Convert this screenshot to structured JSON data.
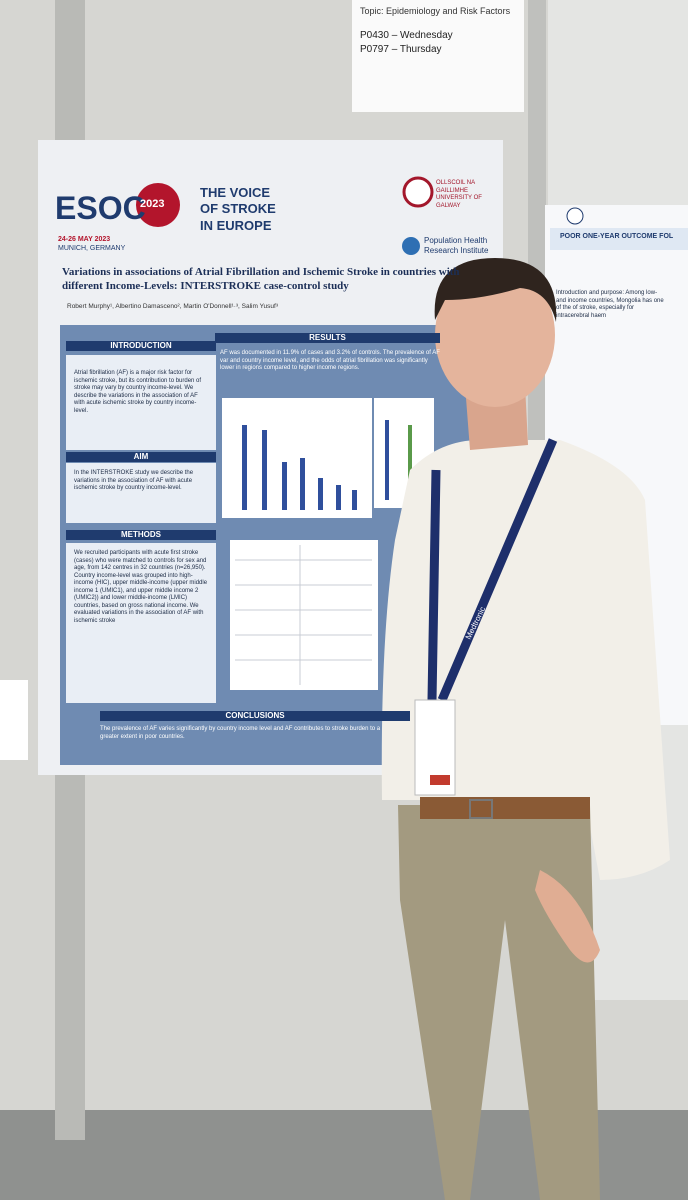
{
  "sign": {
    "topic": "Topic: Epidemiology and Risk Factors",
    "sessions": [
      "P0430 – Wednesday",
      "P0797 – Thursday"
    ]
  },
  "poster": {
    "logo": "ESOC",
    "logo_year": "2023",
    "dates": "24-26 MAY 2023",
    "place": "MUNICH, GERMANY",
    "slogan": "THE VOICE OF STROKE IN EUROPE",
    "university": "OLLSCOIL NA GAILLIMHE UNIVERSITY OF GALWAY",
    "institute": "Population Health Research Institute",
    "title": "Variations in associations of Atrial Fibrillation and Ischemic Stroke in countries with different Income-Levels: INTERSTROKE case-control study",
    "authors": "Robert Murphy¹, Albertino Damasceno², Martin O'Donnell¹·³, Salim Yusuf³",
    "sections": [
      {
        "heading": "INTRODUCTION",
        "text": "Atrial fibrillation (AF) is a major risk factor for ischemic stroke, but its contribution to burden of stroke may vary by country income-level. We describe the variations in the association of AF with acute ischemic stroke by country income-level."
      },
      {
        "heading": "AIM",
        "text": "In the INTERSTROKE study we describe the variations in the association of AF with acute ischemic stroke by country income-level."
      },
      {
        "heading": "METHODS",
        "text": "We recruited participants with acute first stroke (cases) who were matched to controls for sex and age, from 142 centres in 32 countries (n=26,950). Country income-level was grouped into high-income (HIC), upper middle-income (upper middle income 1 (UMIC1), and upper middle income 2 (UMIC2)) and lower middle-income (LMIC) countries, based on gross national income. We evaluated variations in the association of AF with ischemic stroke"
      },
      {
        "heading": "RESULTS",
        "text": "AF was documented in 11.9% of cases and 3.2% of controls. The prevalence of AF var and country income level, and the odds of atrial fibrillation was significantly lower in regions compared to higher income regions."
      },
      {
        "heading": "CONCLUSIONS",
        "text": "The prevalence of AF varies significantly by country income level and AF contributes to stroke burden to a greater extent in poor countries."
      }
    ]
  },
  "neighbor_poster": {
    "title": "POOR ONE-YEAR OUTCOME FOL",
    "intro": "Introduction and purpose: Among low- and income countries, Mongolia has one of the of stroke, especially for intracerebral haem"
  },
  "lanyard": "Medtronic"
}
